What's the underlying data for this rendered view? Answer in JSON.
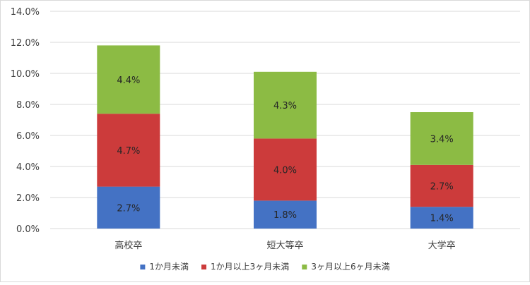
{
  "chart_data": {
    "type": "bar",
    "stacked": true,
    "categories": [
      "高校卒",
      "短大等卒",
      "大学卒"
    ],
    "series": [
      {
        "name": "1か月未満",
        "values": [
          2.7,
          1.8,
          1.4
        ],
        "labels": [
          "2.7%",
          "1.8%",
          "1.4%"
        ],
        "color": "#4472c4"
      },
      {
        "name": "1か月以上3ヶ月未満",
        "values": [
          4.7,
          4.0,
          2.7
        ],
        "labels": [
          "4.7%",
          "4.0%",
          "2.7%"
        ],
        "color": "#cc3b3b"
      },
      {
        "name": "3ヶ月以上6ヶ月未満",
        "values": [
          4.4,
          4.3,
          3.4
        ],
        "labels": [
          "4.4%",
          "4.3%",
          "3.4%"
        ],
        "color": "#8cbb44"
      }
    ],
    "ylim": [
      0,
      14
    ],
    "y_ticks": [
      "0.0%",
      "2.0%",
      "4.0%",
      "6.0%",
      "8.0%",
      "10.0%",
      "12.0%",
      "14.0%"
    ],
    "grid": true,
    "legend_position": "bottom",
    "title": "",
    "xlabel": "",
    "ylabel": ""
  }
}
